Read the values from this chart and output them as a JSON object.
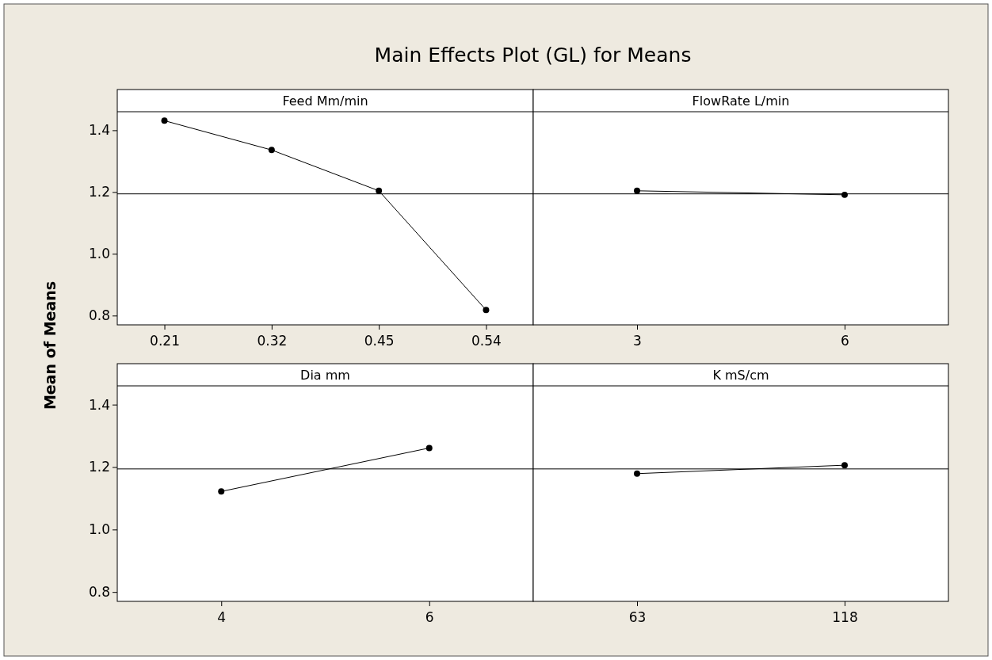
{
  "chart_data": [
    {
      "type": "line",
      "title": "Main Effects Plot (GL) for Means",
      "subtitle": "Feed Mm/min",
      "ylabel": "Mean of Means",
      "categories": [
        "0.21",
        "0.32",
        "0.45",
        "0.54"
      ],
      "values": [
        1.431,
        1.336,
        1.204,
        0.818
      ],
      "color": "#000000",
      "marker": "circle",
      "ylim": [
        0.77,
        1.46
      ],
      "yticks": [
        0.8,
        {
          "value": 1.0,
          "label": "1.0"
        },
        1.2,
        1.4
      ],
      "ref_lines": [
        {
          "axis": "y",
          "value": 1.194,
          "color": "#000000"
        }
      ]
    },
    {
      "type": "line",
      "subtitle": "FlowRate L/min",
      "categories": [
        "3",
        "6"
      ],
      "values": [
        1.204,
        1.191
      ],
      "color": "#000000",
      "marker": "circle",
      "ylim": [
        0.77,
        1.46
      ],
      "tick_labels": "x",
      "ref_lines": [
        {
          "axis": "y",
          "value": 1.194,
          "color": "#000000"
        }
      ]
    },
    {
      "type": "line",
      "subtitle": "Dia mm",
      "categories": [
        "4",
        "6"
      ],
      "values": [
        1.122,
        1.261
      ],
      "color": "#000000",
      "marker": "circle",
      "ylim": [
        0.77,
        1.46
      ],
      "yticks": [
        0.8,
        {
          "value": 1.0,
          "label": "1.0"
        },
        1.2,
        1.4
      ],
      "ref_lines": [
        {
          "axis": "y",
          "value": 1.194,
          "color": "#000000"
        }
      ]
    },
    {
      "type": "line",
      "subtitle": "K mS/cm",
      "categories": [
        "63",
        "118"
      ],
      "values": [
        1.179,
        1.206
      ],
      "color": "#000000",
      "marker": "circle",
      "ylim": [
        0.77,
        1.46
      ],
      "tick_labels": "x",
      "ref_lines": [
        {
          "axis": "y",
          "value": 1.194,
          "color": "#000000"
        }
      ]
    }
  ]
}
